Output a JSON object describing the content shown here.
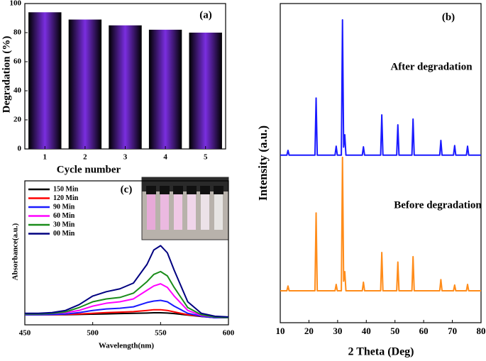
{
  "chart_data": [
    {
      "type": "bar",
      "annotation": "(a)",
      "x_label": "Cycle number",
      "y_label": "Degradation (%)",
      "categories": [
        "1",
        "2",
        "3",
        "4",
        "5"
      ],
      "values": [
        94,
        89,
        85,
        82,
        80
      ],
      "color": "#7a2ee0",
      "ylim": [
        0,
        100
      ],
      "yticks": [
        0,
        20,
        40,
        60,
        80,
        100
      ]
    },
    {
      "type": "line",
      "annotation": "(b)",
      "x_label": "2 Theta (Deg)",
      "y_label": "Intensity (a.u.)",
      "x": [
        10,
        12.3,
        12.7,
        13.1,
        22.1,
        22.5,
        22.9,
        29.1,
        29.5,
        29.9,
        31.3,
        31.7,
        32.1,
        32.5,
        32.9,
        38.6,
        39,
        39.4,
        45,
        45.4,
        45.8,
        50.6,
        51,
        51.4,
        55.9,
        56.3,
        56.7,
        65.6,
        66,
        66.4,
        70.4,
        70.8,
        71.2,
        74.9,
        75.3,
        75.7,
        80
      ],
      "series": [
        {
          "name": "After degradation",
          "color": "#1a1aff",
          "values": [
            52.5,
            52.5,
            54,
            52.5,
            52.5,
            70.4,
            52.5,
            52.5,
            55.3,
            52.5,
            52.5,
            94.9,
            55,
            58.9,
            52.5,
            52.5,
            55.1,
            52.5,
            52.5,
            65.1,
            52.5,
            52.5,
            62,
            52.5,
            52.5,
            63.8,
            52.5,
            52.5,
            57.1,
            52.5,
            52.5,
            55.5,
            52.5,
            52.5,
            55.3,
            52.5,
            52.5
          ]
        },
        {
          "name": "Before degradation",
          "color": "#ff8c1a",
          "values": [
            10,
            10,
            11.5,
            10,
            10,
            34.4,
            10,
            10,
            12,
            10,
            10,
            51.8,
            13,
            16,
            10,
            10,
            12.7,
            10,
            10,
            22,
            10,
            10,
            19,
            10,
            10,
            20.7,
            10,
            10,
            13.5,
            10,
            10,
            11.8,
            10,
            10,
            12,
            10,
            10
          ]
        }
      ],
      "xlim": [
        10,
        80
      ],
      "xticks": [
        10,
        20,
        30,
        40,
        50,
        60,
        70,
        80
      ],
      "ylim": [
        0,
        100
      ]
    },
    {
      "type": "line",
      "annotation": "(c)",
      "x_label": "Wavelength(nm)",
      "y_label": "Absorbance(a.u.)",
      "legend": "upper left",
      "x": [
        450,
        460,
        470,
        480,
        490,
        500,
        510,
        520,
        530,
        540,
        545,
        550,
        555,
        560,
        570,
        580,
        590,
        600
      ],
      "series": [
        {
          "name": "150 Min",
          "color": "#000000",
          "values": [
            0.07,
            0.07,
            0.07,
            0.07,
            0.072,
            0.074,
            0.076,
            0.078,
            0.08,
            0.082,
            0.084,
            0.084,
            0.082,
            0.078,
            0.068,
            0.058,
            0.05,
            0.05
          ]
        },
        {
          "name": "120 Min",
          "color": "#ff0000",
          "values": [
            0.07,
            0.07,
            0.07,
            0.072,
            0.075,
            0.08,
            0.085,
            0.088,
            0.092,
            0.1,
            0.105,
            0.105,
            0.1,
            0.09,
            0.07,
            0.06,
            0.05,
            0.05
          ]
        },
        {
          "name": "90 Min",
          "color": "#1a1aff",
          "values": [
            0.07,
            0.07,
            0.072,
            0.075,
            0.085,
            0.1,
            0.11,
            0.115,
            0.125,
            0.155,
            0.165,
            0.17,
            0.16,
            0.13,
            0.08,
            0.06,
            0.05,
            0.05
          ]
        },
        {
          "name": "60 Min",
          "color": "#ff00ff",
          "values": [
            0.075,
            0.075,
            0.08,
            0.085,
            0.1,
            0.13,
            0.15,
            0.16,
            0.18,
            0.24,
            0.27,
            0.285,
            0.26,
            0.2,
            0.1,
            0.065,
            0.055,
            0.05
          ]
        },
        {
          "name": "30 Min",
          "color": "#1a8c1a",
          "values": [
            0.075,
            0.075,
            0.08,
            0.09,
            0.12,
            0.16,
            0.18,
            0.19,
            0.22,
            0.3,
            0.35,
            0.37,
            0.34,
            0.26,
            0.12,
            0.07,
            0.055,
            0.05
          ]
        },
        {
          "name": "00 Min",
          "color": "#000080",
          "values": [
            0.08,
            0.08,
            0.085,
            0.1,
            0.14,
            0.2,
            0.23,
            0.25,
            0.29,
            0.42,
            0.52,
            0.55,
            0.5,
            0.38,
            0.16,
            0.08,
            0.06,
            0.055
          ]
        }
      ],
      "xlim": [
        450,
        600
      ],
      "xticks": [
        450,
        500,
        550,
        600
      ],
      "ylim": [
        0,
        1
      ]
    }
  ]
}
